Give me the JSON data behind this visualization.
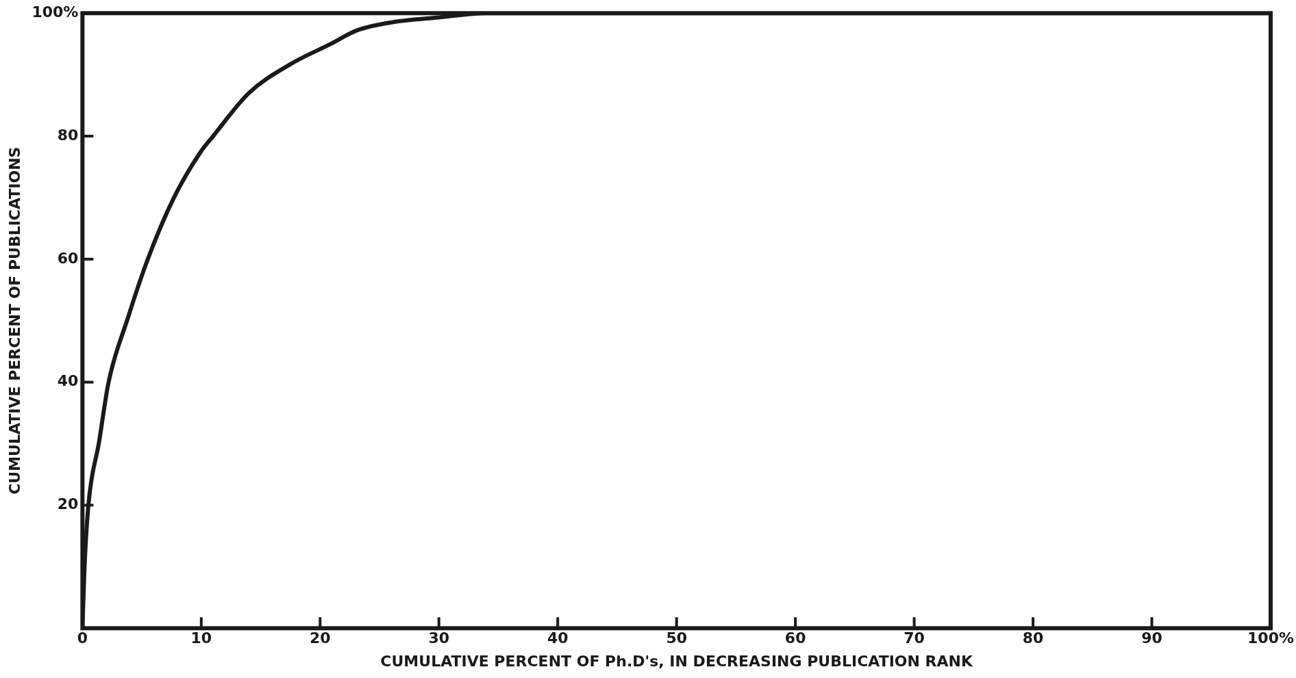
{
  "chart_data": {
    "type": "line",
    "xlabel": "CUMULATIVE PERCENT OF Ph.D's, IN DECREASING PUBLICATION RANK",
    "ylabel": "CUMULATIVE PERCENT OF PUBLICATIONS",
    "x": [
      0,
      0.17,
      0.5,
      1.4,
      2.2,
      3.8,
      5.5,
      7.7,
      9.9,
      11,
      14,
      17.5,
      20.9,
      23.1,
      26,
      30,
      34,
      40,
      60,
      80,
      100
    ],
    "series": [
      {
        "color": "#1a1a1a",
        "values": [
          0,
          9.7,
          20,
          30.3,
          40,
          50.3,
          60,
          70,
          77.3,
          80,
          87,
          91.7,
          95,
          97.2,
          98.5,
          99.3,
          100,
          100,
          100,
          100,
          100
        ]
      }
    ],
    "xlim": [
      0,
      100
    ],
    "xticks": [
      0,
      10,
      20,
      30,
      40,
      50,
      60,
      70,
      80,
      90,
      {
        "value": 100,
        "label": "100%"
      }
    ],
    "ylim": [
      0,
      100
    ],
    "yticks": [
      20,
      40,
      60,
      80,
      {
        "value": 100,
        "label": "100%"
      }
    ],
    "marker": "none",
    "line_style": "solid",
    "legend": false,
    "grid": false
  }
}
